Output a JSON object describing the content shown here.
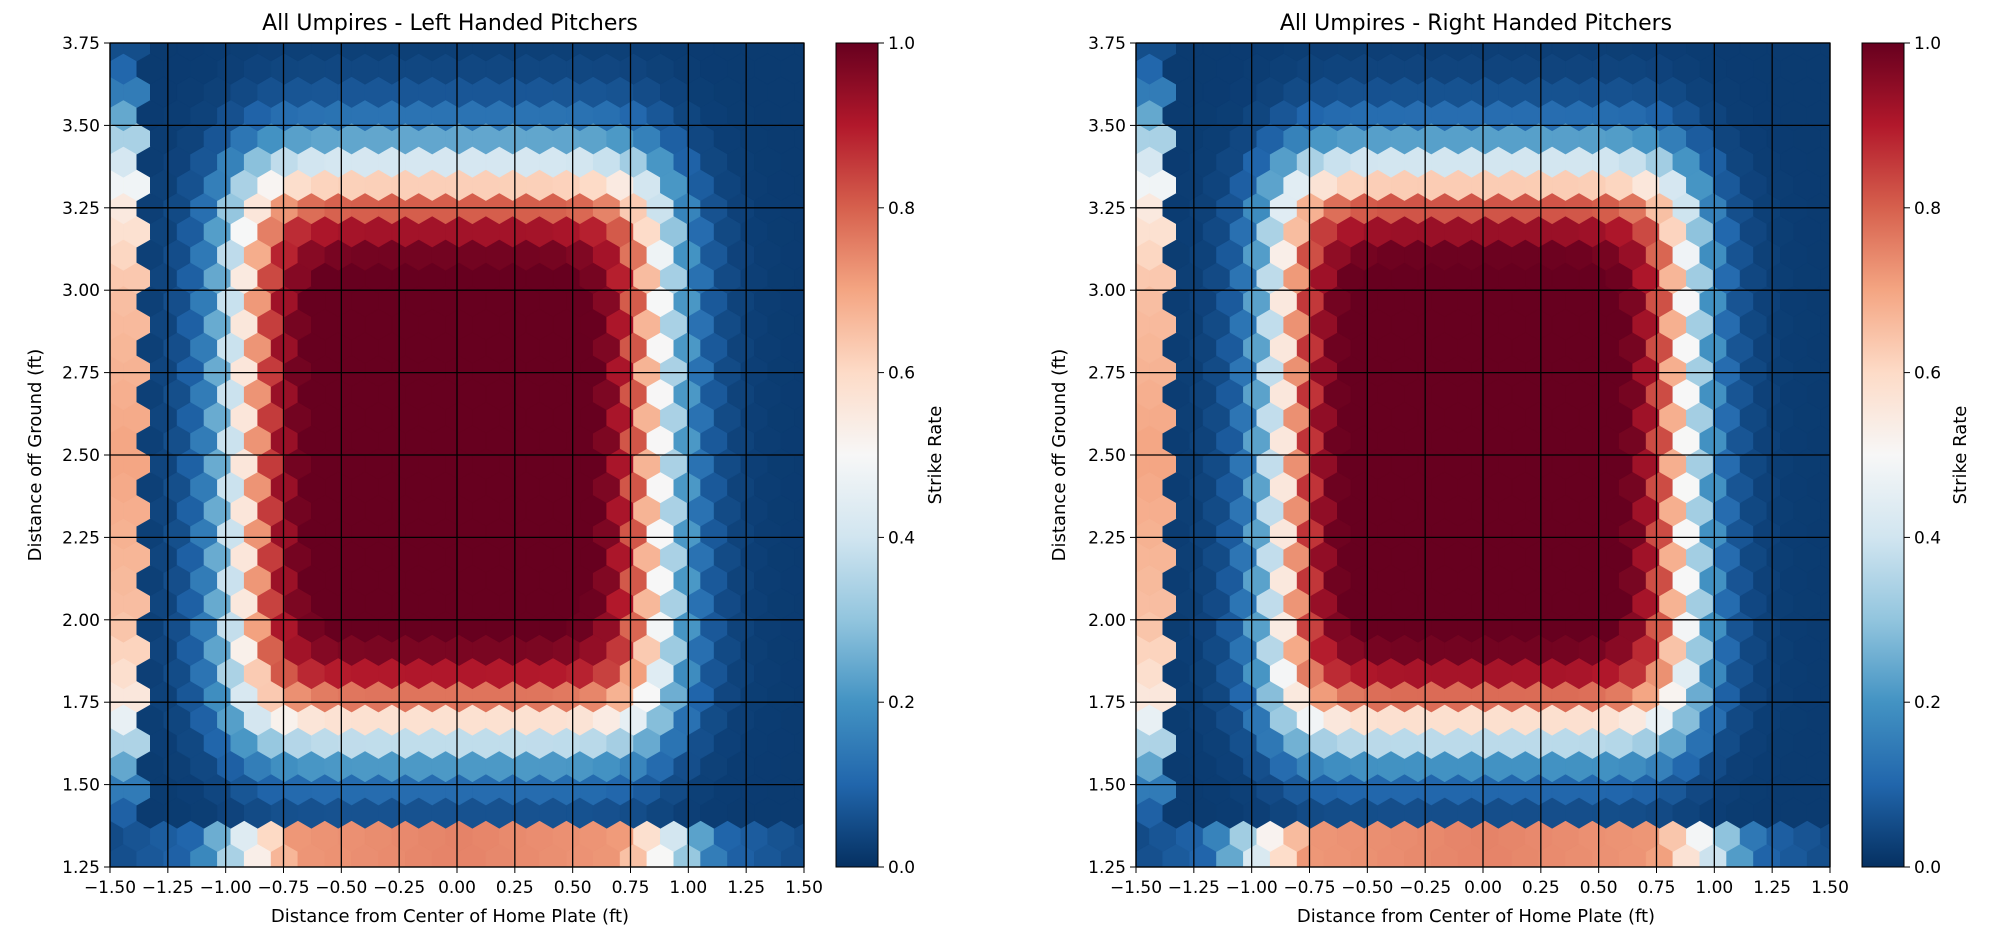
{
  "chart_data": [
    {
      "type": "heatmap",
      "subtype": "hexbin",
      "title": "All Umpires - Left Handed Pitchers",
      "xlabel": "Distance from Center of Home Plate (ft)",
      "ylabel": "Distance off Ground (ft)",
      "xlim": [
        -1.5,
        1.5
      ],
      "ylim": [
        1.25,
        3.75
      ],
      "xticks": [
        "−1.50",
        "−1.25",
        "−1.00",
        "−0.75",
        "−0.50",
        "−0.25",
        "0.00",
        "0.25",
        "0.50",
        "0.75",
        "1.00",
        "1.25",
        "1.50"
      ],
      "yticks": [
        "1.25",
        "1.50",
        "1.75",
        "2.00",
        "2.25",
        "2.50",
        "2.75",
        "3.00",
        "3.25",
        "3.50",
        "3.75"
      ],
      "grid": true,
      "colormap": "RdBu_r",
      "colorbar": {
        "label": "Strike Rate",
        "range": [
          0,
          1
        ],
        "ticks": [
          "0.0",
          "0.2",
          "0.4",
          "0.6",
          "0.8",
          "1.0"
        ]
      },
      "strike_zone_model": {
        "x_half_width": 0.9,
        "x_center": -0.03,
        "z_bottom": 1.68,
        "z_top": 3.35,
        "edge_softness": 0.085
      },
      "edge_columns": [
        {
          "x_from": -1.5,
          "x_to": -1.36,
          "values_by_height": [
            [
              1.25,
              0.05
            ],
            [
              1.45,
              0.1
            ],
            [
              1.6,
              0.3
            ],
            [
              1.75,
              0.55
            ],
            [
              2.0,
              0.65
            ],
            [
              2.5,
              0.7
            ],
            [
              3.0,
              0.65
            ],
            [
              3.25,
              0.55
            ],
            [
              3.45,
              0.35
            ],
            [
              3.6,
              0.15
            ],
            [
              3.75,
              0.05
            ]
          ]
        }
      ],
      "bottom_row": {
        "y_from": 1.25,
        "y_to": 1.38,
        "values_by_x": [
          [
            -1.5,
            0.05
          ],
          [
            -1.15,
            0.1
          ],
          [
            -1.0,
            0.3
          ],
          [
            -0.85,
            0.55
          ],
          [
            -0.7,
            0.72
          ],
          [
            0.0,
            0.75
          ],
          [
            0.7,
            0.72
          ],
          [
            0.85,
            0.55
          ],
          [
            1.0,
            0.3
          ],
          [
            1.15,
            0.1
          ],
          [
            1.5,
            0.05
          ]
        ]
      }
    },
    {
      "type": "heatmap",
      "subtype": "hexbin",
      "title": "All Umpires - Right Handed Pitchers",
      "xlabel": "Distance from Center of Home Plate (ft)",
      "ylabel": "Distance off Ground (ft)",
      "xlim": [
        -1.5,
        1.5
      ],
      "ylim": [
        1.25,
        3.75
      ],
      "xticks": [
        "−1.50",
        "−1.25",
        "−1.00",
        "−0.75",
        "−0.50",
        "−0.25",
        "0.00",
        "0.25",
        "0.50",
        "0.75",
        "1.00",
        "1.25",
        "1.50"
      ],
      "yticks": [
        "1.25",
        "1.50",
        "1.75",
        "2.00",
        "2.25",
        "2.50",
        "2.75",
        "3.00",
        "3.25",
        "3.50",
        "3.75"
      ],
      "grid": true,
      "colormap": "RdBu_r",
      "colorbar": {
        "label": "Strike Rate",
        "range": [
          0,
          1
        ],
        "ticks": [
          "0.0",
          "0.2",
          "0.4",
          "0.6",
          "0.8",
          "1.0"
        ]
      },
      "strike_zone_model": {
        "x_half_width": 0.87,
        "x_center": 0.0,
        "z_bottom": 1.68,
        "z_top": 3.35,
        "edge_softness": 0.08
      },
      "edge_columns": [
        {
          "x_from": -1.5,
          "x_to": -1.36,
          "values_by_height": [
            [
              1.25,
              0.05
            ],
            [
              1.45,
              0.1
            ],
            [
              1.6,
              0.3
            ],
            [
              1.75,
              0.55
            ],
            [
              2.0,
              0.65
            ],
            [
              2.5,
              0.7
            ],
            [
              3.0,
              0.65
            ],
            [
              3.25,
              0.55
            ],
            [
              3.45,
              0.35
            ],
            [
              3.6,
              0.15
            ],
            [
              3.75,
              0.05
            ]
          ]
        }
      ],
      "bottom_row": {
        "y_from": 1.25,
        "y_to": 1.38,
        "values_by_x": [
          [
            -1.5,
            0.05
          ],
          [
            -1.2,
            0.1
          ],
          [
            -1.05,
            0.3
          ],
          [
            -0.9,
            0.55
          ],
          [
            -0.75,
            0.72
          ],
          [
            0.0,
            0.75
          ],
          [
            0.75,
            0.72
          ],
          [
            0.9,
            0.55
          ],
          [
            1.05,
            0.3
          ],
          [
            1.2,
            0.1
          ],
          [
            1.5,
            0.05
          ]
        ]
      }
    }
  ]
}
